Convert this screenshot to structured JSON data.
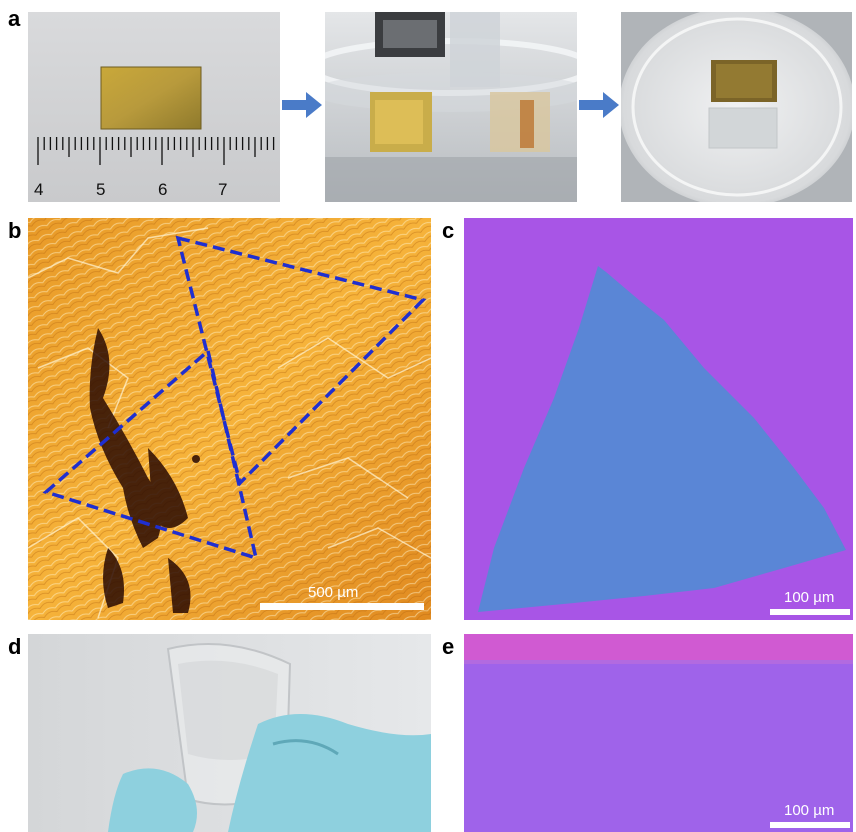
{
  "panel_labels": {
    "a": "a",
    "b": "b",
    "c": "c",
    "d": "d",
    "e": "e"
  },
  "ruler": {
    "ticks": [
      "4",
      "5",
      "6",
      "7"
    ]
  },
  "scale_bars": {
    "b": "500 µm",
    "c": "100 µm",
    "e": "100 µm"
  },
  "colors": {
    "arrow": "#4a7bc8",
    "triangle_dash": "#1f2fd0",
    "substrate_purple": "#a855e6",
    "flake_blue": "#5a86d6",
    "copper_orange": "#f0a030",
    "glove": "#8ed0de"
  }
}
